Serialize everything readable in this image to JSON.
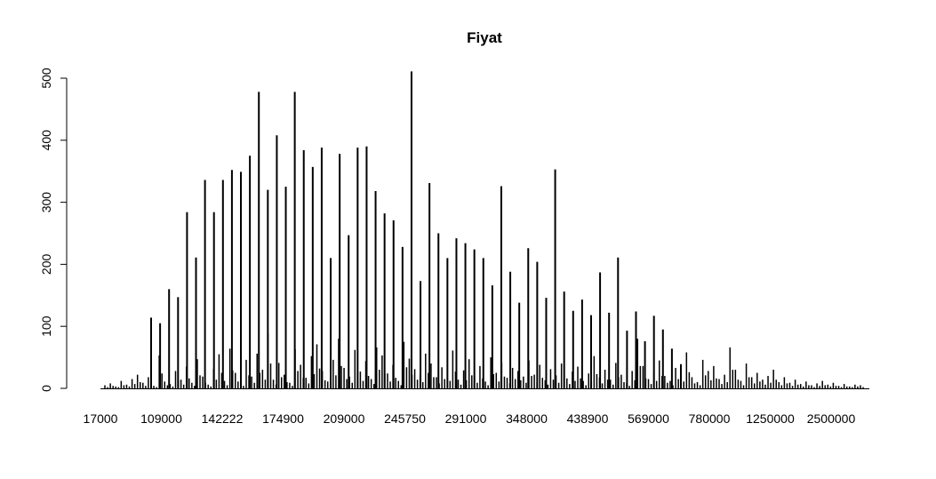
{
  "chart_data": {
    "type": "bar",
    "title": "Fiyat",
    "xlabel": "",
    "ylabel": "",
    "ylim": [
      0,
      510
    ],
    "y_ticks": [
      0,
      100,
      200,
      300,
      400,
      500
    ],
    "x_tick_labels": [
      "17000",
      "109000",
      "142222",
      "174900",
      "209000",
      "245750",
      "291000",
      "348000",
      "438900",
      "569000",
      "780000",
      "1250000",
      "2500000"
    ],
    "major_counts": [
      114,
      105,
      160,
      147,
      284,
      211,
      336,
      284,
      336,
      352,
      349,
      375,
      478,
      320,
      408,
      325,
      478,
      384,
      357,
      388,
      210,
      378,
      247,
      388,
      390,
      318,
      282,
      271,
      228,
      511,
      173,
      331,
      250,
      210,
      242,
      234,
      224,
      210,
      166,
      326,
      188,
      138,
      226,
      204,
      146,
      353,
      156,
      125,
      143,
      118,
      187,
      122,
      211,
      93,
      124,
      76,
      117,
      95,
      64,
      39
    ],
    "minor_counts": [
      5,
      8,
      3,
      12,
      6,
      15,
      22,
      9,
      18,
      4,
      53,
      11,
      7,
      28,
      14,
      35,
      9,
      47,
      19,
      6,
      31,
      55,
      12,
      64,
      25,
      8,
      46,
      19,
      56,
      30,
      88,
      14,
      41,
      22,
      9,
      63,
      38,
      17,
      52,
      71,
      28,
      11,
      46,
      80,
      33,
      19,
      62,
      27,
      44,
      15,
      66,
      53,
      24,
      38,
      12,
      75,
      48,
      31,
      22,
      56,
      40,
      18,
      34,
      26,
      61,
      14,
      29,
      47,
      20,
      36,
      11,
      50,
      25,
      42,
      17,
      33,
      28,
      19,
      45,
      22,
      38,
      13,
      31,
      21,
      40,
      16,
      27,
      35,
      12,
      24,
      52,
      18,
      30,
      14,
      41,
      22,
      9,
      28,
      80,
      36,
      15,
      26,
      45,
      20,
      12,
      33,
      24,
      58,
      18,
      10,
      46,
      28,
      36,
      15,
      22,
      66,
      30,
      12,
      40,
      18,
      25,
      14,
      20,
      30,
      10,
      18,
      9,
      14,
      7,
      11,
      5,
      8,
      12,
      6,
      9,
      4,
      7,
      3,
      6,
      5
    ]
  }
}
